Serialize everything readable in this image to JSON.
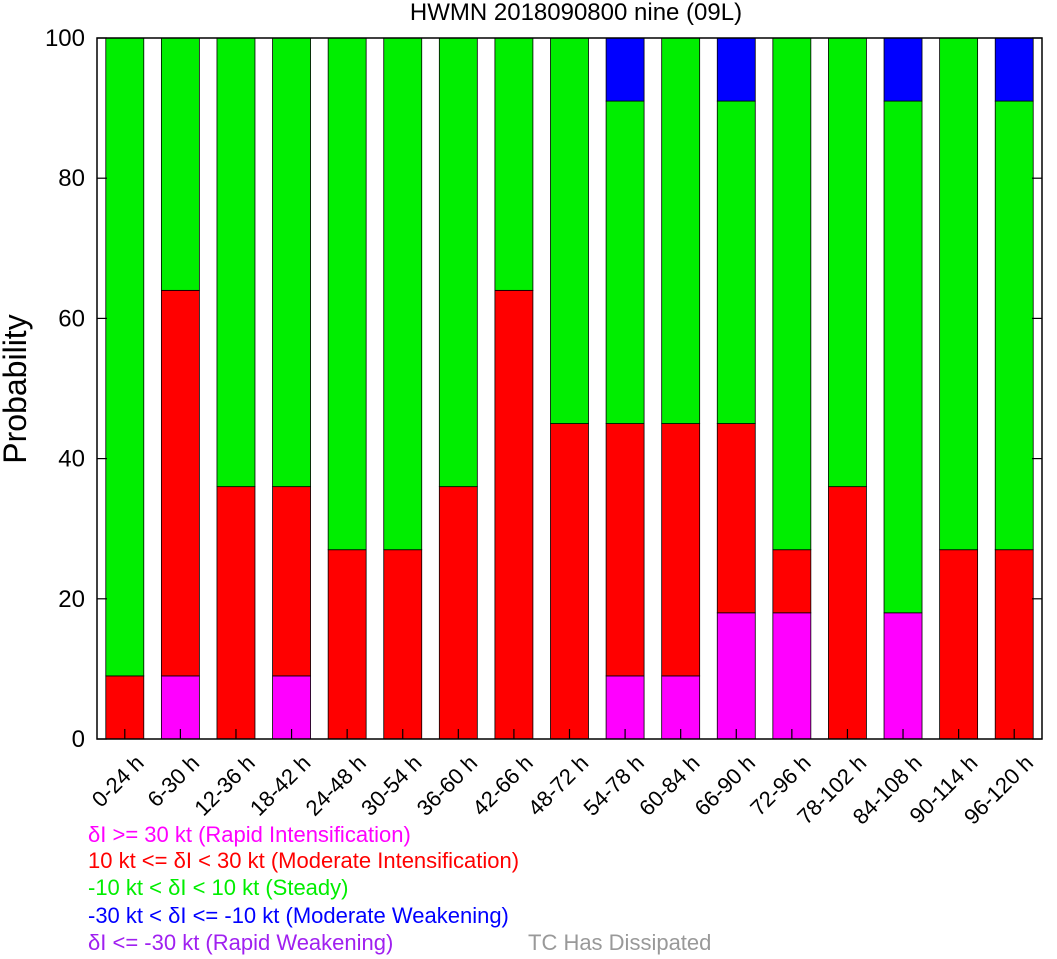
{
  "chart_data": {
    "type": "stacked-bar",
    "title": "HWMN 2018090800 nine (09L)",
    "xlabel": "",
    "ylabel": "Probability",
    "ylim": [
      0,
      100
    ],
    "yticks": [
      "0",
      "20",
      "40",
      "60",
      "80",
      "100"
    ],
    "categories": [
      "0-24 h",
      "6-30 h",
      "12-36 h",
      "18-42 h",
      "24-48 h",
      "30-54 h",
      "36-60 h",
      "42-66 h",
      "48-72 h",
      "54-78 h",
      "60-84 h",
      "66-90 h",
      "72-96 h",
      "78-102 h",
      "84-108 h",
      "90-114 h",
      "96-120 h"
    ],
    "series": [
      {
        "name": "Rapid Intensification",
        "color": "#ff00ff",
        "values": [
          0,
          9,
          0,
          9,
          0,
          0,
          0,
          0,
          0,
          9,
          9,
          18,
          18,
          0,
          18,
          0,
          0
        ]
      },
      {
        "name": "Moderate Intensification",
        "color": "#ff0000",
        "values": [
          9,
          55,
          36,
          27,
          27,
          27,
          36,
          64,
          45,
          36,
          36,
          27,
          9,
          36,
          0,
          27,
          27
        ]
      },
      {
        "name": "Steady",
        "color": "#00ee00",
        "values": [
          91,
          36,
          64,
          64,
          73,
          73,
          64,
          36,
          55,
          46,
          55,
          46,
          73,
          64,
          73,
          73,
          64
        ]
      },
      {
        "name": "Moderate Weakening",
        "color": "#0000ff",
        "values": [
          0,
          0,
          0,
          0,
          0,
          0,
          0,
          0,
          0,
          9,
          0,
          9,
          0,
          0,
          9,
          0,
          9
        ]
      },
      {
        "name": "Rapid Weakening",
        "color": "#a020f0",
        "values": [
          0,
          0,
          0,
          0,
          0,
          0,
          0,
          0,
          0,
          0,
          0,
          0,
          0,
          0,
          0,
          0,
          0
        ]
      }
    ],
    "legend": [
      {
        "text": "δI >= 30 kt (Rapid Intensification)",
        "color": "#ff00ff"
      },
      {
        "text": "10 kt <= δI < 30 kt (Moderate Intensification)",
        "color": "#ff0000"
      },
      {
        "text": "-10 kt < δI < 10 kt (Steady)",
        "color": "#00ee00"
      },
      {
        "text": "-30 kt < δI <= -10 kt (Moderate Weakening)",
        "color": "#0000ff"
      },
      {
        "text": "δI <= -30 kt (Rapid Weakening)",
        "color": "#a020f0"
      }
    ],
    "note": {
      "text": "TC Has Dissipated",
      "color": "#999999"
    }
  }
}
